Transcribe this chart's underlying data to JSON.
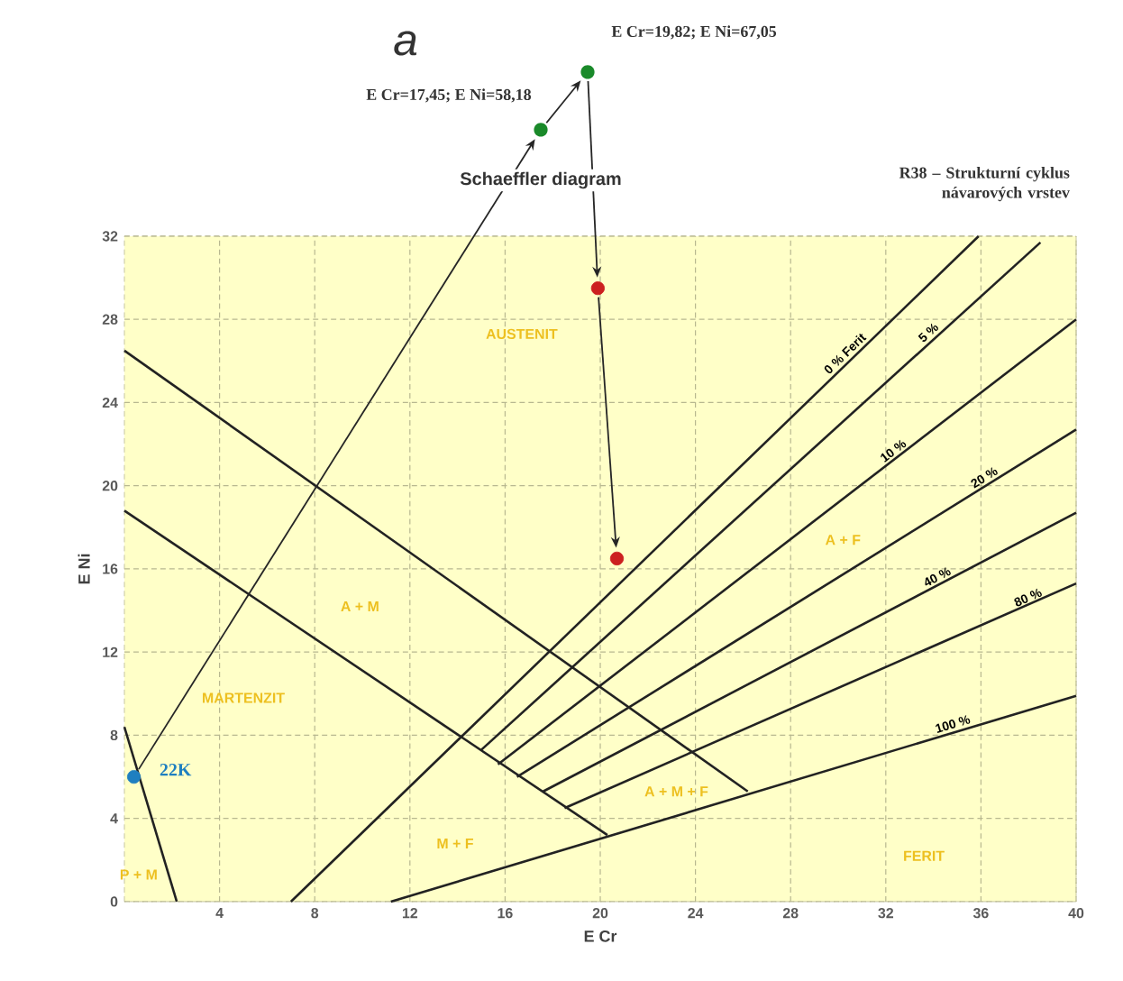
{
  "chart_data": {
    "type": "line",
    "title": "Schaeffler diagram",
    "subtitle": "R38 – Strukturní cyklus návarových vrstev",
    "xlabel": "E Cr",
    "ylabel": "E Ni",
    "xlim": [
      0,
      40
    ],
    "ylim": [
      0,
      32
    ],
    "xticks": [
      4,
      8,
      12,
      16,
      20,
      24,
      28,
      32,
      36,
      40
    ],
    "yticks": [
      0,
      4,
      8,
      12,
      16,
      20,
      24,
      28,
      32
    ],
    "grid": true,
    "series": [
      {
        "color": "#222222",
        "x": [
          0,
          26.2
        ],
        "values": [
          26.5,
          5.3
        ]
      },
      {
        "color": "#222222",
        "x": [
          0,
          20.3
        ],
        "values": [
          18.8,
          3.2
        ]
      },
      {
        "color": "#222222",
        "x": [
          7,
          35.9
        ],
        "values": [
          0,
          32
        ]
      },
      {
        "color": "#222222",
        "x": [
          15,
          38.5
        ],
        "values": [
          7.3,
          31.7
        ]
      },
      {
        "color": "#222222",
        "x": [
          15.7,
          40
        ],
        "values": [
          6.6,
          28
        ]
      },
      {
        "color": "#222222",
        "x": [
          16.5,
          40
        ],
        "values": [
          6,
          22.7
        ]
      },
      {
        "color": "#222222",
        "x": [
          17.6,
          40
        ],
        "values": [
          5.3,
          18.7
        ]
      },
      {
        "color": "#222222",
        "x": [
          18.5,
          40
        ],
        "values": [
          4.5,
          15.3
        ]
      },
      {
        "color": "#222222",
        "x": [
          11.2,
          40
        ],
        "values": [
          0,
          9.9
        ]
      },
      {
        "color": "#222222",
        "x": [
          0,
          2.2
        ],
        "values": [
          8.4,
          0
        ]
      },
      {
        "type": "scatter",
        "name": "22K",
        "color": "#1f7fc0",
        "x": [
          0.4
        ],
        "values": [
          6
        ]
      },
      {
        "type": "scatter",
        "color": "#cc2020",
        "x": [
          19.9,
          20.7
        ],
        "values": [
          29.5,
          16.5
        ]
      }
    ],
    "annotations": [
      "a",
      "E Cr=19,82; E Ni=67,05",
      "E Cr=17,45; E Ni=58,18",
      {
        "text": "0 % Ferit",
        "x": 30.5,
        "y": 26.1
      },
      {
        "text": "5 %",
        "x": 34,
        "y": 27.1
      },
      {
        "text": "10 %",
        "x": 32.5,
        "y": 21.4
      },
      {
        "text": "20 %",
        "x": 36.3,
        "y": 20.1
      },
      {
        "text": "40 %",
        "x": 34.3,
        "y": 15.3
      },
      {
        "text": "80 %",
        "x": 38.1,
        "y": 14.3
      },
      {
        "text": "100 %",
        "x": 34.9,
        "y": 8.2
      },
      "AUSTENIT",
      "A + M",
      "MARTENZIT",
      "A + F",
      "A + M + F",
      "M + F",
      "FERIT",
      "P + M"
    ]
  }
}
